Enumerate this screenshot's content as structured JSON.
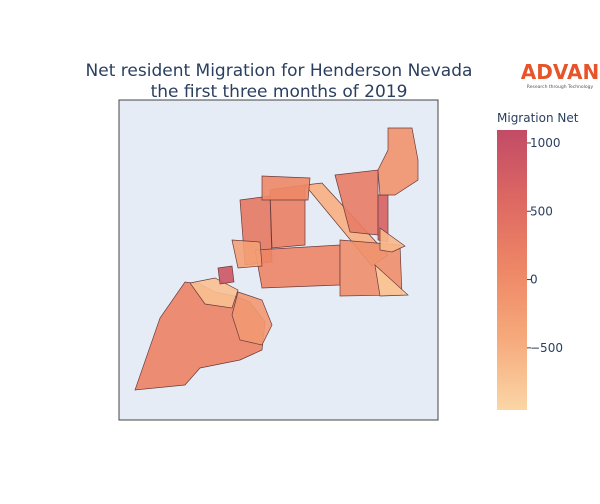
{
  "chart_data": {
    "type": "choropleth",
    "title": [
      "Net resident Migration for Henderson Nevada",
      "the first three months of 2019"
    ],
    "values": [
      150,
      -700,
      -200,
      900,
      300,
      200,
      -500,
      250,
      100,
      -50,
      -800,
      700,
      -600,
      50,
      -100,
      -300
    ],
    "colorscale": [
      "#fbd6a6",
      "#f6aa7c",
      "#ee8766",
      "#dd6862",
      "#c24b66"
    ],
    "colorbar_title": "Migration Net",
    "clim": [
      -955,
      1095
    ],
    "colorbar_ticks": [
      1000,
      500,
      0,
      {
        "value": -500,
        "label": "−500"
      }
    ]
  },
  "logo": {
    "name": "ADVAN",
    "tagline": "Research through Technology"
  }
}
